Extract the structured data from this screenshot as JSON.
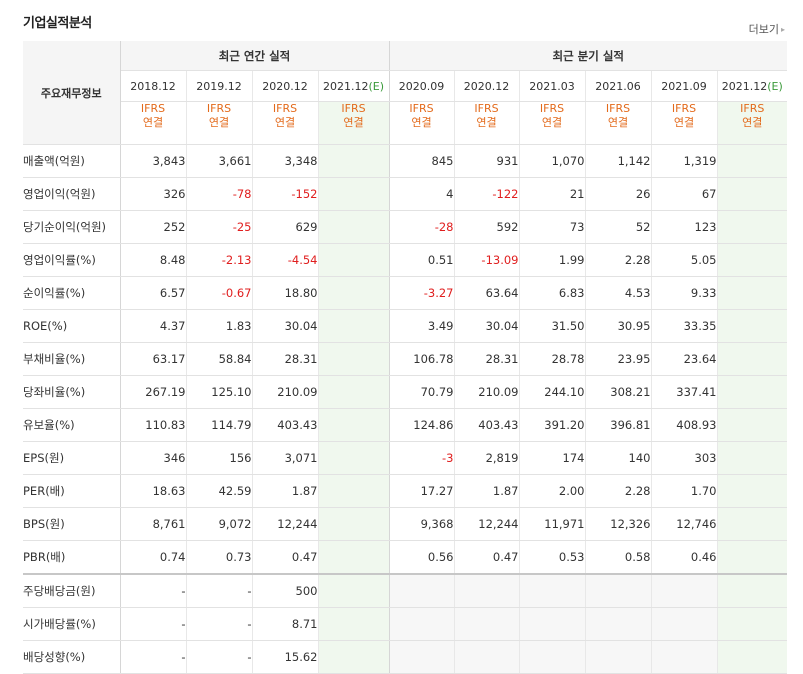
{
  "section_title": "기업실적분석",
  "more_label": "더보기",
  "more_arrow": "▸",
  "header": {
    "corner_label": "주요재무정보",
    "annual_label": "최근 연간 실적",
    "quarter_label": "최근 분기 실적",
    "ifrs_line1": "IFRS",
    "ifrs_line2": "연결",
    "periods": [
      {
        "date": "2018.12",
        "est": ""
      },
      {
        "date": "2019.12",
        "est": ""
      },
      {
        "date": "2020.12",
        "est": ""
      },
      {
        "date": "2021.12",
        "est": "(E)"
      },
      {
        "date": "2020.09",
        "est": ""
      },
      {
        "date": "2020.12",
        "est": ""
      },
      {
        "date": "2021.03",
        "est": ""
      },
      {
        "date": "2021.06",
        "est": ""
      },
      {
        "date": "2021.09",
        "est": ""
      },
      {
        "date": "2021.12",
        "est": "(E)"
      }
    ]
  },
  "rows": [
    {
      "label": "매출액(억원)",
      "values": [
        "3,843",
        "3,661",
        "3,348",
        "",
        "845",
        "931",
        "1,070",
        "1,142",
        "1,319",
        ""
      ]
    },
    {
      "label": "영업이익(억원)",
      "values": [
        "326",
        "-78",
        "-152",
        "",
        "4",
        "-122",
        "21",
        "26",
        "67",
        ""
      ]
    },
    {
      "label": "당기순이익(억원)",
      "values": [
        "252",
        "-25",
        "629",
        "",
        "-28",
        "592",
        "73",
        "52",
        "123",
        ""
      ]
    },
    {
      "label": "영업이익률(%)",
      "values": [
        "8.48",
        "-2.13",
        "-4.54",
        "",
        "0.51",
        "-13.09",
        "1.99",
        "2.28",
        "5.05",
        ""
      ]
    },
    {
      "label": "순이익률(%)",
      "values": [
        "6.57",
        "-0.67",
        "18.80",
        "",
        "-3.27",
        "63.64",
        "6.83",
        "4.53",
        "9.33",
        ""
      ]
    },
    {
      "label": "ROE(%)",
      "values": [
        "4.37",
        "1.83",
        "30.04",
        "",
        "3.49",
        "30.04",
        "31.50",
        "30.95",
        "33.35",
        ""
      ]
    },
    {
      "label": "부채비율(%)",
      "values": [
        "63.17",
        "58.84",
        "28.31",
        "",
        "106.78",
        "28.31",
        "28.78",
        "23.95",
        "23.64",
        ""
      ]
    },
    {
      "label": "당좌비율(%)",
      "values": [
        "267.19",
        "125.10",
        "210.09",
        "",
        "70.79",
        "210.09",
        "244.10",
        "308.21",
        "337.41",
        ""
      ]
    },
    {
      "label": "유보율(%)",
      "values": [
        "110.83",
        "114.79",
        "403.43",
        "",
        "124.86",
        "403.43",
        "391.20",
        "396.81",
        "408.93",
        ""
      ]
    },
    {
      "label": "EPS(원)",
      "values": [
        "346",
        "156",
        "3,071",
        "",
        "-3",
        "2,819",
        "174",
        "140",
        "303",
        ""
      ]
    },
    {
      "label": "PER(배)",
      "values": [
        "18.63",
        "42.59",
        "1.87",
        "",
        "17.27",
        "1.87",
        "2.00",
        "2.28",
        "1.70",
        ""
      ]
    },
    {
      "label": "BPS(원)",
      "values": [
        "8,761",
        "9,072",
        "12,244",
        "",
        "9,368",
        "12,244",
        "11,971",
        "12,326",
        "12,746",
        ""
      ]
    },
    {
      "label": "PBR(배)",
      "values": [
        "0.74",
        "0.73",
        "0.47",
        "",
        "0.56",
        "0.47",
        "0.53",
        "0.58",
        "0.46",
        ""
      ]
    },
    {
      "label": "주당배당금(원)",
      "values": [
        "-",
        "-",
        "500",
        "",
        "",
        "",
        "",
        "",
        "",
        ""
      ]
    },
    {
      "label": "시가배당률(%)",
      "values": [
        "-",
        "-",
        "8.71",
        "",
        "",
        "",
        "",
        "",
        "",
        ""
      ]
    },
    {
      "label": "배당성향(%)",
      "values": [
        "-",
        "-",
        "15.62",
        "",
        "",
        "",
        "",
        "",
        "",
        ""
      ]
    }
  ]
}
